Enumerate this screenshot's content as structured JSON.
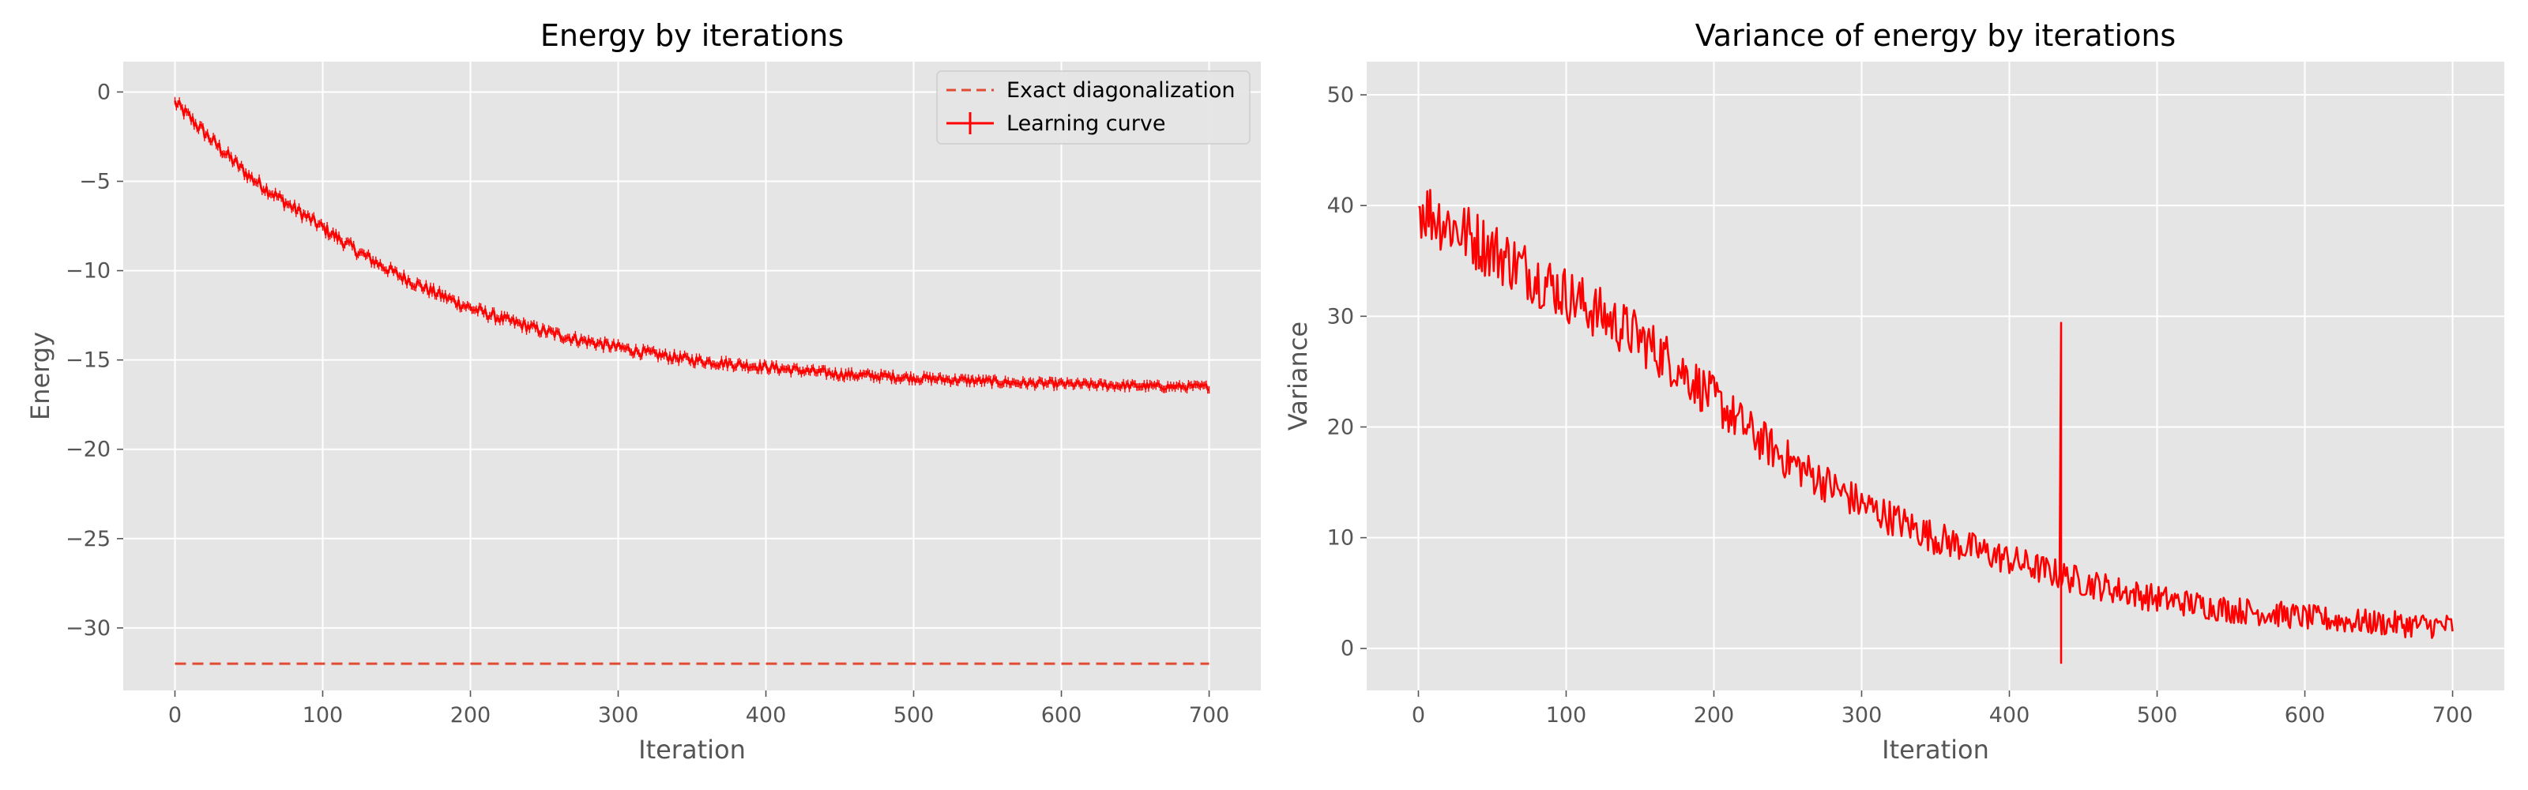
{
  "chart_data": [
    {
      "type": "line",
      "title": "Energy by iterations",
      "xlabel": "Iteration",
      "ylabel": "Energy",
      "xlim": [
        -35,
        735
      ],
      "ylim": [
        -33.5,
        1.7
      ],
      "xticks": [
        0,
        100,
        200,
        300,
        400,
        500,
        600,
        700
      ],
      "yticks": [
        0,
        -5,
        -10,
        -15,
        -20,
        -25,
        -30
      ],
      "grid": true,
      "legend": "top-right",
      "series": [
        {
          "name": "Exact diagonalization",
          "style": "dashed",
          "color": "#e24a33",
          "x": [
            0,
            700
          ],
          "y": [
            -32.0,
            -32.0
          ]
        },
        {
          "name": "Learning curve",
          "style": "solid-with-errorbars",
          "color": "#ff0000",
          "noise": 0.35,
          "x": [
            0,
            25,
            50,
            75,
            100,
            125,
            150,
            175,
            200,
            225,
            250,
            275,
            300,
            325,
            350,
            375,
            400,
            425,
            450,
            475,
            500,
            525,
            550,
            575,
            600,
            625,
            650,
            675,
            700
          ],
          "y": [
            -0.6,
            -2.7,
            -4.7,
            -6.2,
            -7.6,
            -9.0,
            -10.2,
            -11.2,
            -12.1,
            -12.8,
            -13.4,
            -13.9,
            -14.3,
            -14.7,
            -15.0,
            -15.2,
            -15.4,
            -15.6,
            -15.8,
            -15.9,
            -16.0,
            -16.1,
            -16.2,
            -16.3,
            -16.35,
            -16.4,
            -16.45,
            -16.5,
            -16.5
          ]
        }
      ]
    },
    {
      "type": "line",
      "title": "Variance of energy by iterations",
      "xlabel": "Iteration",
      "ylabel": "Variance",
      "xlim": [
        -35,
        735
      ],
      "ylim": [
        -3.8,
        53
      ],
      "xticks": [
        0,
        100,
        200,
        300,
        400,
        500,
        600,
        700
      ],
      "yticks": [
        50,
        40,
        30,
        20,
        10,
        0
      ],
      "grid": true,
      "series": [
        {
          "name": "",
          "style": "solid",
          "color": "#ff0000",
          "noise": 3.0,
          "x": [
            0,
            25,
            50,
            75,
            100,
            125,
            150,
            175,
            200,
            225,
            250,
            275,
            300,
            325,
            350,
            375,
            400,
            425,
            450,
            475,
            500,
            525,
            550,
            575,
            600,
            625,
            650,
            675,
            700
          ],
          "y": [
            40,
            38,
            36,
            34,
            32,
            30,
            28,
            25.5,
            22.5,
            19.5,
            17,
            15,
            13,
            11.5,
            10,
            9,
            8,
            7,
            6,
            5.2,
            4.5,
            4,
            3.5,
            3.2,
            2.8,
            2.5,
            2.3,
            2.1,
            2.0
          ],
          "spike": {
            "x": 435,
            "y_min": -1.3,
            "y_max": 29.4
          }
        }
      ]
    }
  ]
}
